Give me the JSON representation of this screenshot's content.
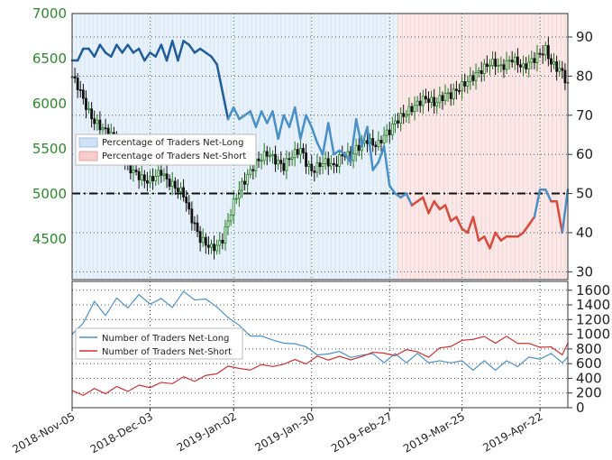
{
  "chart_data": [
    {
      "type": "candlestick",
      "left_axis": {
        "ticks": [
          "7000",
          "6500",
          "6000",
          "5500",
          "5000",
          "4500"
        ],
        "values": [
          7000,
          6500,
          6000,
          5500,
          5000,
          4500
        ],
        "ylim": [
          4050,
          7000
        ]
      },
      "right_axis": {
        "ticks": [
          "90",
          "80",
          "70",
          "60",
          "50",
          "40",
          "30"
        ],
        "values": [
          90,
          80,
          70,
          60,
          50,
          40,
          30
        ],
        "ylim": [
          28,
          96
        ]
      },
      "reference_level": 50,
      "legend_position": "center-left",
      "legend": [
        {
          "label": "Percentage of Traders Net-Long",
          "color": "#cfe2f7"
        },
        {
          "label": "Percentage of Traders Net-Short",
          "color": "#f7cccc"
        }
      ],
      "price_keyframes": {
        "x": [
          0,
          2,
          4,
          6,
          8,
          10,
          12,
          14,
          16,
          18,
          20,
          22,
          24,
          26,
          28,
          30,
          32,
          34,
          36,
          38,
          40,
          42,
          44,
          46,
          48,
          50,
          52,
          54,
          56,
          58,
          60,
          62,
          64,
          66,
          68,
          70,
          72,
          74,
          76,
          78,
          80,
          82,
          84,
          86,
          88,
          90,
          92,
          94,
          96,
          98,
          100,
          102,
          104,
          106,
          108,
          110,
          112,
          114,
          116,
          118,
          120,
          122,
          124,
          126,
          128,
          130,
          132,
          134,
          136,
          138,
          140,
          142,
          144,
          146,
          148,
          150,
          152,
          154,
          156,
          158,
          160,
          162,
          164,
          166,
          168,
          170,
          172,
          174,
          176,
          178
        ],
        "close": [
          6300,
          6200,
          6050,
          5900,
          5800,
          5750,
          5700,
          5650,
          5550,
          5450,
          5300,
          5250,
          5200,
          5150,
          5150,
          5200,
          5250,
          5150,
          5100,
          5050,
          5000,
          4800,
          4650,
          4500,
          4450,
          4400,
          4420,
          4500,
          4700,
          4900,
          5050,
          5150,
          5250,
          5350,
          5400,
          5450,
          5400,
          5350,
          5300,
          5400,
          5450,
          5500,
          5350,
          5250,
          5300,
          5350,
          5350,
          5300,
          5400,
          5450,
          5400,
          5500,
          5550,
          5600,
          5550,
          5550,
          5650,
          5700,
          5800,
          5850,
          5900,
          5950,
          6000,
          6050,
          6050,
          6000,
          6050,
          6100,
          6100,
          6150,
          6200,
          6250,
          6300,
          6350,
          6400,
          6450,
          6450,
          6400,
          6450,
          6500,
          6450,
          6400,
          6450,
          6500,
          6550,
          6600,
          6450,
          6400,
          6350,
          6200
        ]
      },
      "pct_net_long": {
        "x": [
          0,
          2,
          4,
          6,
          8,
          10,
          12,
          14,
          16,
          18,
          20,
          22,
          24,
          26,
          28,
          30,
          32,
          34,
          36,
          38,
          40,
          42,
          44,
          46,
          48,
          50,
          52,
          54,
          56,
          58,
          60,
          62,
          64,
          66,
          68,
          70,
          72,
          74,
          76,
          78,
          80,
          82,
          84,
          86,
          88,
          90,
          92,
          94,
          96,
          98,
          100,
          102,
          104,
          106,
          108,
          110,
          112,
          114,
          116,
          118,
          120,
          122,
          124,
          126,
          128,
          130,
          132,
          134,
          136,
          138,
          140,
          142,
          144,
          146,
          148,
          150,
          152,
          154,
          156,
          158,
          160,
          162,
          164,
          166,
          168,
          170,
          172,
          174,
          176,
          178
        ],
        "values": [
          84,
          84,
          87,
          87,
          85,
          88,
          86,
          85,
          88,
          86,
          88,
          86,
          87,
          84,
          86,
          85,
          88,
          84,
          89,
          84,
          89,
          88,
          86,
          87,
          86,
          85,
          83,
          76,
          69,
          72,
          69,
          70,
          71,
          67,
          71,
          68,
          71,
          64,
          70,
          67,
          72,
          64,
          70,
          67,
          63,
          60,
          68,
          60,
          61,
          60,
          58,
          69,
          62,
          67,
          56,
          58,
          62,
          52,
          50,
          49,
          50,
          47,
          48,
          49,
          45,
          48,
          46,
          47,
          43,
          44,
          41,
          40,
          44,
          38,
          39,
          36,
          40,
          38,
          39,
          39,
          39,
          40,
          42,
          44,
          51,
          51,
          48,
          48,
          40,
          51
        ],
        "colors": {
          "above_50": "#1f5d9b",
          "above_50_light": "#4a90c8",
          "below_50": "#d84a3a"
        }
      },
      "sentiment_shading": {
        "long_until_x": 117
      }
    },
    {
      "type": "line",
      "right_axis": {
        "ticks": [
          "1600",
          "1400",
          "1200",
          "1000",
          "800",
          "600",
          "400",
          "200",
          "0"
        ],
        "values": [
          1600,
          1400,
          1200,
          1000,
          800,
          600,
          400,
          200,
          0
        ],
        "ylim": [
          0,
          1720
        ]
      },
      "legend_position": "center-left",
      "series": [
        {
          "name": "Number of Traders Net-Long",
          "color": "#4a90c8",
          "x": [
            0,
            4,
            8,
            12,
            16,
            20,
            24,
            28,
            32,
            36,
            40,
            44,
            48,
            52,
            56,
            60,
            64,
            68,
            72,
            76,
            80,
            84,
            88,
            92,
            96,
            100,
            104,
            108,
            112,
            116,
            120,
            124,
            128,
            132,
            136,
            140,
            144,
            148,
            152,
            156,
            160,
            164,
            168,
            172,
            176,
            178
          ],
          "values": [
            1000,
            1150,
            1450,
            1250,
            1500,
            1350,
            1550,
            1400,
            1500,
            1350,
            1600,
            1450,
            1500,
            1350,
            1250,
            1100,
            1000,
            950,
            950,
            850,
            900,
            800,
            750,
            700,
            800,
            650,
            750,
            700,
            650,
            700,
            650,
            700,
            650,
            600,
            650,
            600,
            550,
            600,
            550,
            600,
            600,
            650,
            700,
            700,
            650,
            650
          ]
        },
        {
          "name": "Number of Traders Net-Short",
          "color": "#d03030",
          "x": [
            0,
            4,
            8,
            12,
            16,
            20,
            24,
            28,
            32,
            36,
            40,
            44,
            48,
            52,
            56,
            60,
            64,
            68,
            72,
            76,
            80,
            84,
            88,
            92,
            96,
            100,
            104,
            108,
            112,
            116,
            120,
            124,
            128,
            132,
            136,
            140,
            144,
            148,
            152,
            156,
            160,
            164,
            168,
            172,
            176,
            178
          ],
          "values": [
            200,
            200,
            230,
            220,
            260,
            250,
            280,
            300,
            320,
            350,
            400,
            380,
            420,
            480,
            550,
            550,
            500,
            600,
            550,
            600,
            650,
            600,
            700,
            650,
            700,
            650,
            700,
            750,
            750,
            700,
            800,
            750,
            700,
            800,
            850,
            900,
            950,
            950,
            900,
            950,
            900,
            850,
            850,
            800,
            750,
            850
          ]
        }
      ]
    }
  ],
  "x_axis": {
    "ticks": [
      "2018-Nov-05",
      "2018-Dec-03",
      "2019-Jan-02",
      "2019-Jan-30",
      "2019-Feb-27",
      "2019-Mar-25",
      "2019-Apr-22"
    ],
    "positions": [
      0,
      28,
      58,
      86,
      114,
      140,
      168
    ]
  }
}
